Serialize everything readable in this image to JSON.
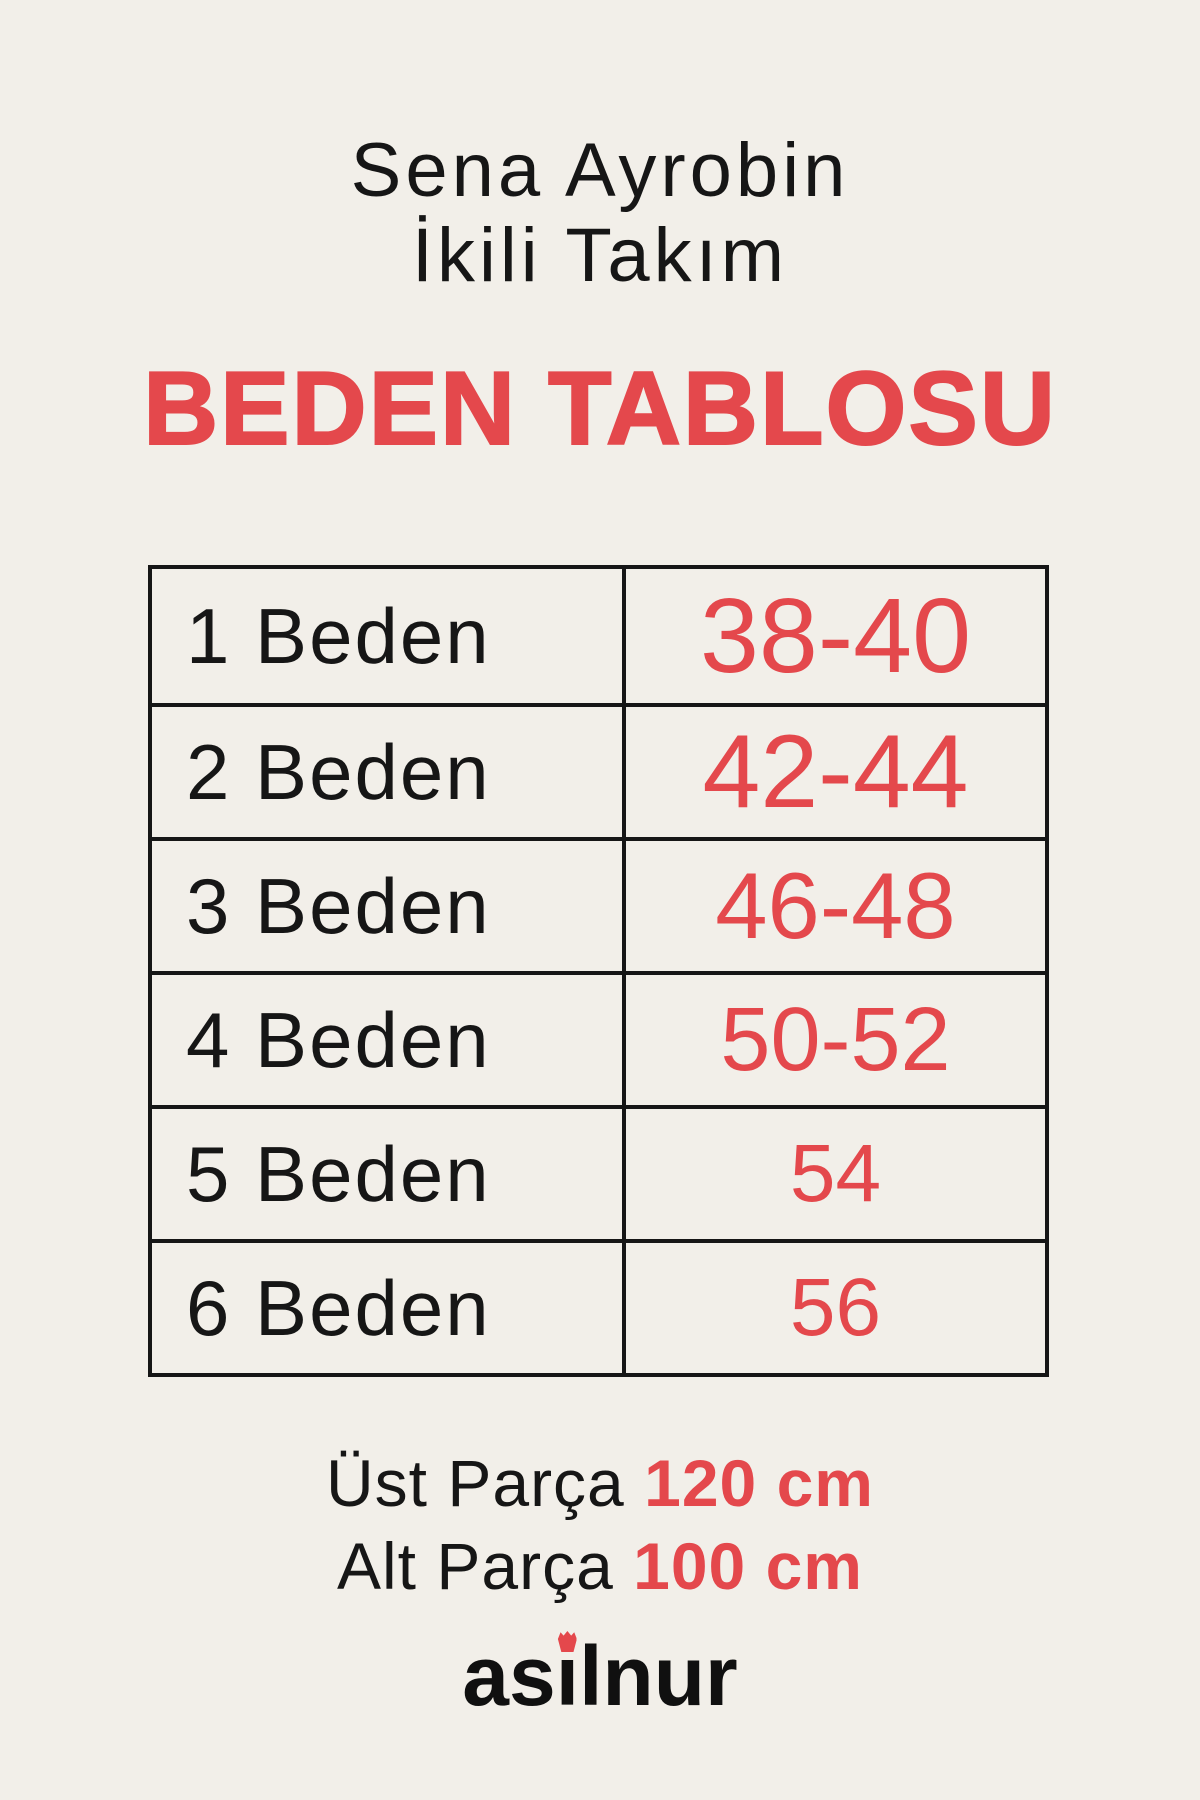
{
  "theme": {
    "bg_cream": "#F2EFE9",
    "accent_red": "#E4484C",
    "text_black": "#161616"
  },
  "header": {
    "product_line1": "Sena Ayrobin",
    "product_line2": "İkili Takım",
    "title": "BEDEN TABLOSU"
  },
  "size_table": {
    "rows": [
      {
        "label": "1 Beden",
        "value": "38-40"
      },
      {
        "label": "2 Beden",
        "value": "42-44"
      },
      {
        "label": "3 Beden",
        "value": "46-48"
      },
      {
        "label": "4 Beden",
        "value": "50-52"
      },
      {
        "label": "5 Beden",
        "value": "54"
      },
      {
        "label": "6 Beden",
        "value": "56"
      }
    ]
  },
  "measurements": [
    {
      "label": "Üst Parça",
      "value": "120 cm"
    },
    {
      "label": "Alt Parça",
      "value": "100 cm"
    }
  ],
  "logo": {
    "before": "as",
    "i": "i",
    "after": "lnur"
  }
}
